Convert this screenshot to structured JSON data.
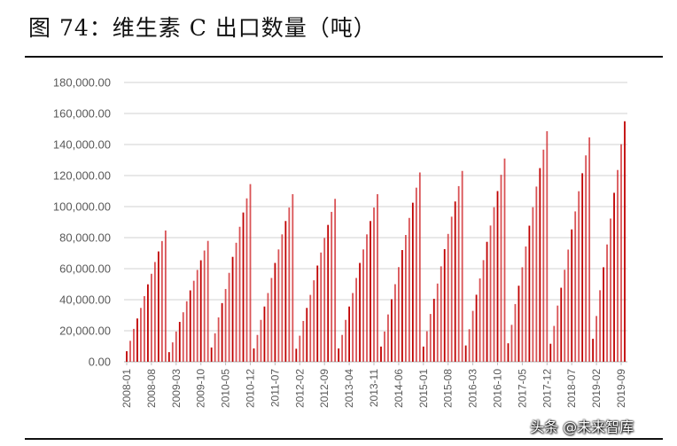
{
  "title": "图 74：维生素 C 出口数量（吨）",
  "watermark": "头条 @未来智库",
  "chart_data": {
    "type": "bar",
    "title": "",
    "xlabel": "",
    "ylabel": "",
    "ylim": [
      0,
      180000
    ],
    "yticks": [
      "0.00",
      "20,000.00",
      "40,000.00",
      "60,000.00",
      "80,000.00",
      "100,000.00",
      "120,000.00",
      "140,000.00",
      "160,000.00",
      "180,000.00"
    ],
    "xtick_labels": [
      "2008-01",
      "2008-08",
      "2009-03",
      "2009-10",
      "2010-05",
      "2010-12",
      "2011-07",
      "2012-02",
      "2012-09",
      "2013-04",
      "2013-11",
      "2014-06",
      "2015-01",
      "2015-08",
      "2016-03",
      "2016-10",
      "2017-05",
      "2017-12",
      "2018-07",
      "2019-02",
      "2019-09"
    ],
    "start_month": "2008-01",
    "end_month": "2019-10",
    "grid": true,
    "bar_color": "#d0272b",
    "values": [
      6800,
      13500,
      21200,
      27900,
      34700,
      42300,
      49900,
      56700,
      64300,
      71100,
      77800,
      84600,
      6200,
      12500,
      19500,
      25700,
      31900,
      39000,
      46000,
      52200,
      59200,
      65400,
      71700,
      77900,
      9200,
      18300,
      28600,
      37800,
      46900,
      57300,
      67600,
      76700,
      87000,
      96200,
      105300,
      114500,
      8600,
      17300,
      27000,
      35600,
      44300,
      54000,
      63700,
      72400,
      82100,
      90700,
      99400,
      108000,
      8400,
      16800,
      26300,
      34700,
      43100,
      52500,
      62000,
      70400,
      79800,
      88200,
      96600,
      105000,
      8600,
      17300,
      27000,
      35600,
      44300,
      54000,
      63700,
      72400,
      82100,
      90700,
      99400,
      108000,
      9800,
      19500,
      30500,
      40300,
      50000,
      61000,
      72000,
      81700,
      92700,
      102500,
      112200,
      122000,
      9800,
      19700,
      30800,
      40600,
      50400,
      61500,
      72600,
      82400,
      93500,
      103300,
      113200,
      123000,
      10500,
      21000,
      32800,
      43200,
      53700,
      65500,
      77300,
      87800,
      99600,
      110000,
      120500,
      131000,
      11900,
      23800,
      37200,
      49000,
      60900,
      74300,
      87700,
      99600,
      112900,
      124800,
      136700,
      148600,
      11600,
      23100,
      36200,
      47700,
      59300,
      72300,
      85300,
      96900,
      109900,
      121500,
      133000,
      144600,
      14800,
      29500,
      46100,
      60900,
      75600,
      92300,
      108900,
      123600,
      140200,
      155000
    ]
  }
}
